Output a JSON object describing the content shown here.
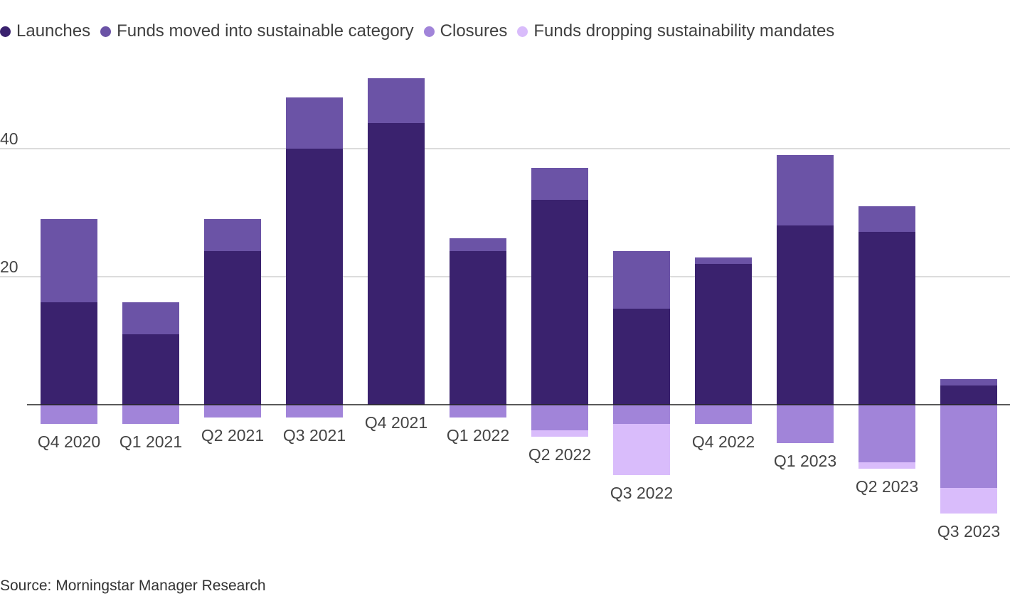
{
  "chart_data": {
    "type": "bar",
    "stacked": true,
    "categories": [
      "Q4 2020",
      "Q1 2021",
      "Q2 2021",
      "Q3 2021",
      "Q4 2021",
      "Q1 2022",
      "Q2 2022",
      "Q3 2022",
      "Q4 2022",
      "Q1 2023",
      "Q2 2023",
      "Q3 2023"
    ],
    "series": [
      {
        "name": "Launches",
        "color": "#3a226e",
        "values": [
          16,
          11,
          24,
          40,
          44,
          24,
          32,
          15,
          22,
          28,
          27,
          3
        ]
      },
      {
        "name": "Funds moved into sustainable category",
        "color": "#6b53a6",
        "values": [
          13,
          5,
          5,
          8,
          7,
          2,
          5,
          9,
          1,
          11,
          4,
          1
        ]
      },
      {
        "name": "Closures",
        "color": "#a184d9",
        "values": [
          -3,
          -3,
          -2,
          -2,
          0,
          -2,
          -4,
          -3,
          -3,
          -6,
          -9,
          -13
        ]
      },
      {
        "name": "Funds dropping sustainability mandates",
        "color": "#d9bcfb",
        "values": [
          0,
          0,
          0,
          0,
          0,
          0,
          -1,
          -8,
          0,
          0,
          -1,
          -4
        ]
      }
    ],
    "yticks": [
      "20",
      "40"
    ],
    "ylim": [
      -17,
      51
    ],
    "grid": true,
    "legend": "top-left"
  },
  "source": "Source: Morningstar Manager Research"
}
